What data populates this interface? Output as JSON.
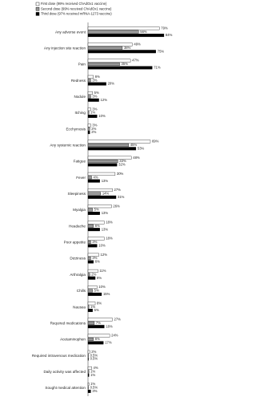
{
  "chart_data": {
    "type": "bar",
    "orientation": "horizontal",
    "legend": "top-left",
    "xlim": [
      0,
      100
    ],
    "categories": [
      "Any adverse event",
      "Any injection site reaction",
      "Pain",
      "Redness",
      "Nodule",
      "Itching",
      "Ecchymosis",
      "Any systemic reaction",
      "Fatigue",
      "Fever",
      "Sleepiness",
      "Myalgia",
      "Headache",
      "Poor appetite",
      "Dizziness",
      "Arthralgia",
      "Chills",
      "Nausea",
      "Required medications",
      "Acetaminophen",
      "Required intravenous medication",
      "Daily activity was affected",
      "Sought medical attention"
    ],
    "series": [
      {
        "name": "First dose (99% received ChAdOx1 vaccine)",
        "color": "#ffffff",
        "values": [
          79,
          49,
          47,
          6,
          5,
          3,
          3,
          69,
          48,
          30,
          27,
          26,
          18,
          18,
          12,
          11,
          10,
          8,
          27,
          24,
          2,
          4,
          1
        ],
        "value_labels": [
          "79%",
          "49%",
          "47%",
          "6%",
          "5%",
          "3%",
          "3%",
          "69%",
          "48%",
          "30%",
          "27%",
          "26%",
          "18%",
          "18%",
          "12%",
          "11%",
          "10%",
          "8%",
          "27%",
          "24%",
          "2%",
          "4%",
          "1%"
        ]
      },
      {
        "name": "Second dose (99% received ChAdOx1 vaccine)",
        "color": "#999999",
        "values": [
          56,
          38,
          35,
          3,
          3,
          1,
          2,
          45,
          33,
          4,
          14,
          5,
          6,
          3,
          3,
          2,
          5,
          1,
          7,
          6,
          0.5,
          1,
          0.5
        ],
        "value_labels": [
          "56%",
          "38%",
          "35%",
          "3%",
          "3%",
          "1%",
          "2%",
          "45%",
          "33%",
          "4%",
          "14%",
          "5%",
          "6%",
          "3%",
          "3%",
          "2%",
          "5%",
          "1%",
          "7%",
          "6%",
          "0.5%",
          "1%",
          "0.5%"
        ]
      },
      {
        "name": "Third dose (97% received mRNA-1273 vaccine)",
        "color": "#000000",
        "values": [
          84,
          75,
          71,
          20,
          12,
          10,
          2,
          53,
          32,
          13,
          31,
          13,
          13,
          10,
          6,
          8,
          15,
          5,
          18,
          17,
          0.5,
          1,
          3
        ],
        "value_labels": [
          "84%",
          "75%",
          "71%",
          "20%",
          "12%",
          "10%",
          "2%",
          "53%",
          "32%",
          "13%",
          "31%",
          "13%",
          "13%",
          "10%",
          "6%",
          "8%",
          "15%",
          "5%",
          "18%",
          "17%",
          "0.5%",
          "1%",
          "3%"
        ]
      }
    ]
  }
}
